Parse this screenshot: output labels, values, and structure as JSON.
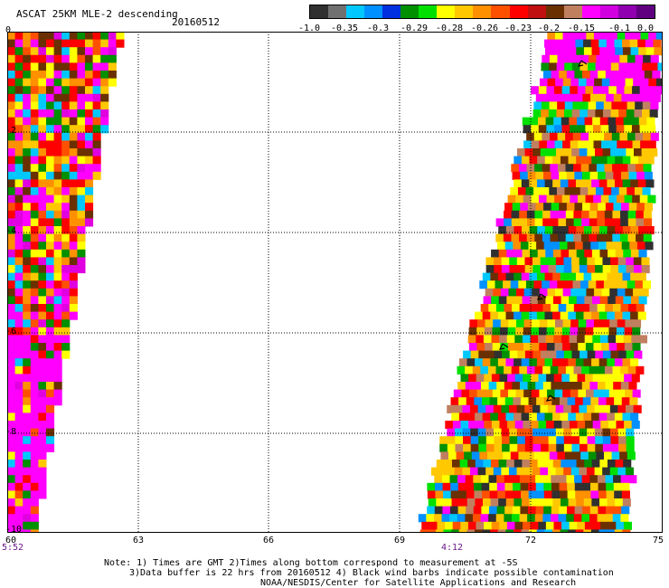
{
  "header": {
    "title": "ASCAT 25KM MLE-2 descending",
    "date": "20160512"
  },
  "colorbar": {
    "colors": [
      "#303030",
      "#707070",
      "#00c8ff",
      "#0090ff",
      "#0030e0",
      "#009000",
      "#00e000",
      "#ffff00",
      "#ffc800",
      "#ff9000",
      "#ff5000",
      "#ff0000",
      "#c01010",
      "#6a3000",
      "#c08060",
      "#ff00ff",
      "#d000e0",
      "#9000b0",
      "#600080"
    ],
    "tick_labels": [
      "-1.0",
      "-0.35",
      "-0.3",
      "-0.29",
      "-0.28",
      "-0.26",
      "-0.23",
      "-0.2",
      "-0.15",
      "-0.1",
      "0.0"
    ]
  },
  "axes": {
    "y_tick_labels": [
      "0",
      "-2",
      "-4",
      "-6",
      "-8",
      "-10"
    ],
    "x_tick_labels": [
      "60",
      "63",
      "66",
      "69",
      "72",
      "75"
    ],
    "time_labels": [
      "5:52",
      "4:12"
    ]
  },
  "notes": {
    "line1": "Note: 1) Times are GMT 2)Times along bottom correspond to measurement at -5S",
    "line2": "3)Data buffer is 22 hrs from 20160512 4) Black wind barbs indicate possible contamination",
    "line3": "NOAA/NESDIS/Center for Satellite Applications and Research"
  }
}
